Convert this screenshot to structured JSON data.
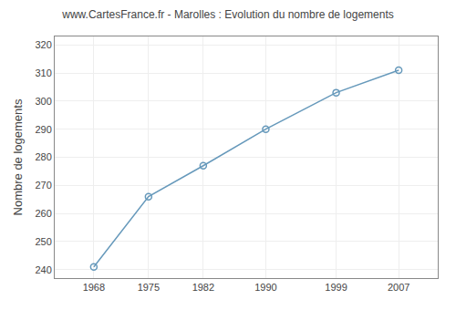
{
  "chart_data": {
    "type": "line",
    "title": "www.CartesFrance.fr - Marolles : Evolution du nombre de logements",
    "ylabel": "Nombre de logements",
    "x": [
      1968,
      1975,
      1982,
      1990,
      1999,
      2007
    ],
    "values": [
      241,
      266,
      277,
      290,
      303,
      311
    ],
    "xlim": [
      1963,
      2012
    ],
    "ylim": [
      237,
      323
    ],
    "xticks": [
      1968,
      1975,
      1982,
      1990,
      1999,
      2007
    ],
    "yticks": [
      240,
      250,
      260,
      270,
      280,
      290,
      300,
      310,
      320
    ],
    "color": "#6699bb",
    "marker": "circle-open",
    "grid": true
  }
}
